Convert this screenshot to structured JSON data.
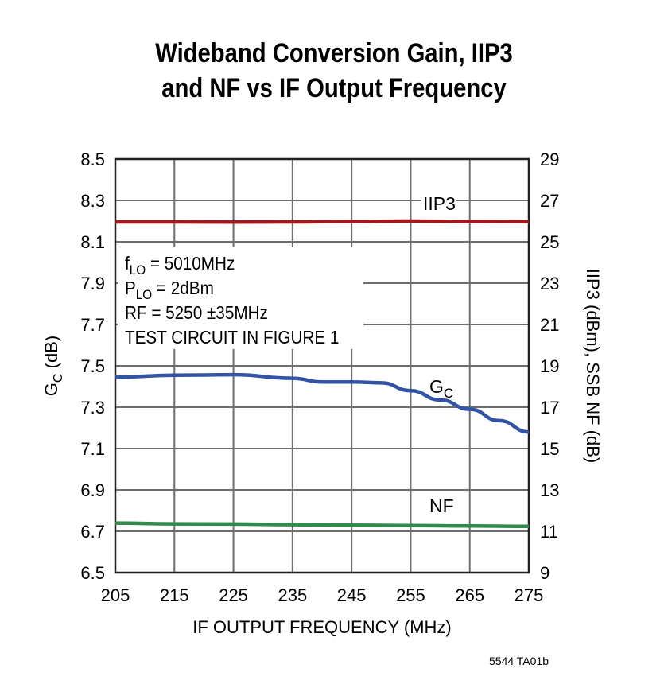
{
  "chart_data": {
    "type": "line",
    "title": [
      "Wideband Conversion Gain, IIP3",
      "and NF vs IF Output Frequency"
    ],
    "xlabel": "IF OUTPUT FREQUENCY (MHz)",
    "ylabel_left": {
      "main": "G",
      "sub": "C",
      "rest": " (dB)"
    },
    "ylabel_right": "IIP3 (dBm), SSB NF (dB)",
    "xlim": [
      205,
      275
    ],
    "ylim_left": [
      6.5,
      8.5
    ],
    "ylim_right": [
      9,
      29
    ],
    "xticks": [
      "205",
      "215",
      "225",
      "235",
      "245",
      "255",
      "265",
      "275"
    ],
    "yticks_left": [
      "8.5",
      "8.3",
      "8.1",
      "7.9",
      "7.7",
      "7.5",
      "7.3",
      "7.1",
      "6.9",
      "6.7",
      "6.5"
    ],
    "yticks_right": [
      "29",
      "27",
      "25",
      "23",
      "21",
      "19",
      "17",
      "15",
      "13",
      "11",
      "9"
    ],
    "grid": true,
    "series": [
      {
        "name": "IIP3",
        "axis": "right",
        "color": "#a0191e",
        "x": [
          205,
          215,
          225,
          235,
          245,
          255,
          265,
          275
        ],
        "y": [
          25.96,
          25.96,
          25.95,
          25.96,
          25.98,
          26.0,
          25.98,
          25.97
        ]
      },
      {
        "name": "GC",
        "label_main": "G",
        "label_sub": "C",
        "axis": "left",
        "color": "#3353a4",
        "x": [
          205,
          215,
          225,
          235,
          240,
          245,
          250,
          255,
          260,
          265,
          270,
          275
        ],
        "y": [
          7.445,
          7.455,
          7.457,
          7.44,
          7.422,
          7.422,
          7.418,
          7.38,
          7.335,
          7.29,
          7.235,
          7.18
        ]
      },
      {
        "name": "NF",
        "axis": "right",
        "color": "#2f8a4b",
        "x": [
          205,
          215,
          225,
          235,
          245,
          255,
          265,
          275
        ],
        "y": [
          11.4,
          11.36,
          11.35,
          11.32,
          11.3,
          11.28,
          11.26,
          11.24
        ]
      }
    ],
    "annotation": [
      {
        "main": "f",
        "sub": "LO",
        "rest": " = 5010MHz"
      },
      {
        "main": "P",
        "sub": "LO",
        "rest": " = 2dBm"
      },
      {
        "main": "RF = 5250 ±35MHz",
        "sub": "",
        "rest": ""
      },
      {
        "main": "TEST CIRCUIT IN FIGURE 1",
        "sub": "",
        "rest": ""
      }
    ],
    "figure_id": "5544 TA01b"
  }
}
